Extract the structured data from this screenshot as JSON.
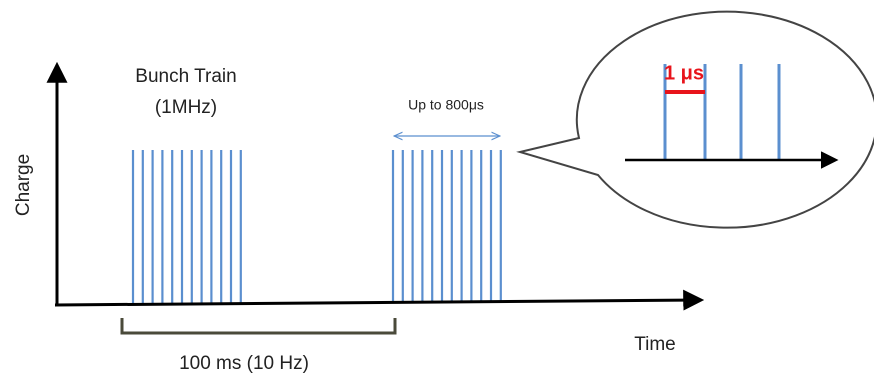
{
  "labels": {
    "train": "Bunch Train",
    "rate": "(1MHz)",
    "length": "Up to 800μs",
    "y_axis": "Charge",
    "x_axis": "Time",
    "period": "100 ms (10 Hz)",
    "spacing": "1 μs"
  }
}
